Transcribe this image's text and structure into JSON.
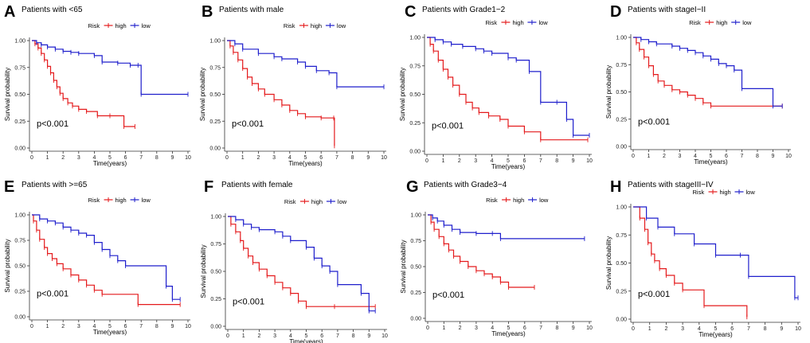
{
  "figure": {
    "common": {
      "legend_title": "Risk",
      "legend_high": "high",
      "legend_low": "low",
      "xlabel": "Time(years)",
      "ylabel": "Survival probability",
      "y_ticks": [
        "0.00",
        "0.25",
        "0.50",
        "0.75",
        "1.00"
      ],
      "colors": {
        "high": "#e41a1c",
        "low": "#1f1fcc"
      }
    }
  },
  "chart_data": [
    {
      "type": "line",
      "panel": "A",
      "title": "Patients with <65",
      "pvalue": "p<0.001",
      "xlim": [
        0,
        10
      ],
      "ylim": [
        0,
        1
      ],
      "x_ticks": [
        0,
        1,
        2,
        3,
        4,
        5,
        6,
        7,
        8,
        9,
        10
      ],
      "series": [
        {
          "name": "high",
          "x": [
            0,
            0.2,
            0.4,
            0.6,
            0.8,
            1.0,
            1.2,
            1.4,
            1.6,
            1.8,
            2.0,
            2.3,
            2.6,
            3.0,
            3.5,
            4.2,
            5.0,
            5.9,
            6.6
          ],
          "y": [
            1.0,
            0.97,
            0.93,
            0.88,
            0.82,
            0.76,
            0.7,
            0.63,
            0.57,
            0.51,
            0.46,
            0.42,
            0.39,
            0.36,
            0.34,
            0.3,
            0.3,
            0.2,
            0.2
          ]
        },
        {
          "name": "low",
          "x": [
            0,
            0.3,
            0.6,
            1.0,
            1.5,
            2.0,
            2.5,
            3.0,
            4.0,
            4.5,
            5.5,
            6.3,
            6.8,
            7.0,
            10.0
          ],
          "y": [
            1.0,
            0.98,
            0.96,
            0.94,
            0.92,
            0.9,
            0.89,
            0.88,
            0.86,
            0.8,
            0.79,
            0.77,
            0.77,
            0.5,
            0.5
          ]
        }
      ]
    },
    {
      "type": "line",
      "panel": "B",
      "title": "Patients with male",
      "pvalue": "p<0.001",
      "xlim": [
        0,
        10
      ],
      "ylim": [
        0,
        1
      ],
      "x_ticks": [
        0,
        1,
        2,
        3,
        4,
        5,
        6,
        7,
        8,
        9,
        10
      ],
      "series": [
        {
          "name": "high",
          "x": [
            0,
            0.2,
            0.4,
            0.7,
            1.0,
            1.3,
            1.6,
            2.0,
            2.4,
            3.0,
            3.5,
            4.0,
            4.5,
            5.0,
            6.0,
            6.8,
            6.85
          ],
          "y": [
            1.0,
            0.95,
            0.89,
            0.82,
            0.74,
            0.66,
            0.6,
            0.55,
            0.5,
            0.45,
            0.4,
            0.35,
            0.32,
            0.29,
            0.28,
            0.28,
            0.02
          ]
        },
        {
          "name": "low",
          "x": [
            0,
            0.5,
            1.0,
            2.0,
            3.0,
            3.5,
            4.5,
            5.0,
            5.7,
            6.5,
            7.0,
            10.0
          ],
          "y": [
            1.0,
            0.97,
            0.92,
            0.88,
            0.85,
            0.83,
            0.8,
            0.76,
            0.72,
            0.7,
            0.57,
            0.57
          ]
        }
      ]
    },
    {
      "type": "line",
      "panel": "C",
      "title": "Patients with Grade1−2",
      "pvalue": "p<0.001",
      "xlim": [
        0,
        10
      ],
      "ylim": [
        0,
        1
      ],
      "x_ticks": [
        0,
        1,
        2,
        3,
        4,
        5,
        6,
        7,
        8,
        9,
        10
      ],
      "series": [
        {
          "name": "high",
          "x": [
            0,
            0.2,
            0.4,
            0.7,
            1.0,
            1.3,
            1.6,
            2.0,
            2.4,
            2.8,
            3.2,
            3.8,
            4.5,
            5.0,
            6.0,
            7.0,
            9.9
          ],
          "y": [
            1.0,
            0.94,
            0.88,
            0.8,
            0.72,
            0.65,
            0.58,
            0.5,
            0.43,
            0.38,
            0.34,
            0.31,
            0.28,
            0.22,
            0.17,
            0.1,
            0.1
          ]
        },
        {
          "name": "low",
          "x": [
            0,
            0.5,
            1.0,
            1.5,
            2.2,
            3.0,
            3.5,
            4.0,
            5.0,
            5.5,
            6.3,
            7.0,
            8.0,
            8.6,
            9.0,
            10.0
          ],
          "y": [
            1.0,
            0.98,
            0.96,
            0.94,
            0.92,
            0.9,
            0.88,
            0.86,
            0.82,
            0.8,
            0.7,
            0.43,
            0.43,
            0.28,
            0.14,
            0.14
          ]
        }
      ]
    },
    {
      "type": "line",
      "panel": "D",
      "title": "Patients with stageI−II",
      "pvalue": "p<0.001",
      "xlim": [
        0,
        10
      ],
      "ylim": [
        0,
        1
      ],
      "x_ticks": [
        0,
        1,
        2,
        3,
        4,
        5,
        6,
        7,
        8,
        9,
        10
      ],
      "series": [
        {
          "name": "high",
          "x": [
            0,
            0.2,
            0.4,
            0.7,
            1.0,
            1.3,
            1.6,
            2.0,
            2.5,
            3.0,
            3.5,
            4.0,
            4.5,
            5.0,
            9.6
          ],
          "y": [
            1.0,
            0.95,
            0.89,
            0.82,
            0.74,
            0.66,
            0.6,
            0.56,
            0.52,
            0.5,
            0.47,
            0.44,
            0.4,
            0.37,
            0.37
          ]
        },
        {
          "name": "low",
          "x": [
            0,
            0.5,
            1.0,
            1.5,
            2.5,
            3.0,
            3.5,
            4.0,
            4.5,
            5.0,
            5.5,
            6.0,
            6.5,
            7.0,
            9.0,
            9.6
          ],
          "y": [
            1.0,
            0.98,
            0.96,
            0.94,
            0.92,
            0.9,
            0.88,
            0.86,
            0.83,
            0.8,
            0.76,
            0.74,
            0.7,
            0.53,
            0.37,
            0.37
          ]
        }
      ]
    },
    {
      "type": "line",
      "panel": "E",
      "title": "Patients with >=65",
      "pvalue": "p<0.001",
      "xlim": [
        0,
        10
      ],
      "ylim": [
        0,
        1
      ],
      "x_ticks": [
        0,
        1,
        2,
        3,
        4,
        5,
        6,
        7,
        8,
        9,
        10
      ],
      "series": [
        {
          "name": "high",
          "x": [
            0,
            0.1,
            0.3,
            0.5,
            0.8,
            1.0,
            1.3,
            1.6,
            2.0,
            2.5,
            3.0,
            3.5,
            4.0,
            4.5,
            6.8,
            9.5
          ],
          "y": [
            1.0,
            0.94,
            0.85,
            0.76,
            0.68,
            0.62,
            0.57,
            0.52,
            0.47,
            0.41,
            0.36,
            0.31,
            0.26,
            0.22,
            0.12,
            0.12
          ]
        },
        {
          "name": "low",
          "x": [
            0,
            0.5,
            1.0,
            1.5,
            2.0,
            2.5,
            3.0,
            3.5,
            4.0,
            4.5,
            5.0,
            5.5,
            6.0,
            8.6,
            9.0,
            9.5
          ],
          "y": [
            1.0,
            0.96,
            0.94,
            0.92,
            0.88,
            0.85,
            0.82,
            0.8,
            0.73,
            0.66,
            0.6,
            0.55,
            0.5,
            0.3,
            0.17,
            0.17
          ]
        }
      ]
    },
    {
      "type": "line",
      "panel": "F",
      "title": "Patients with female",
      "pvalue": "p<0.001",
      "xlim": [
        0,
        10
      ],
      "ylim": [
        0,
        1
      ],
      "x_ticks": [
        0,
        1,
        2,
        3,
        4,
        5,
        6,
        7,
        8,
        9,
        10
      ],
      "series": [
        {
          "name": "high",
          "x": [
            0,
            0.2,
            0.5,
            0.8,
            1.0,
            1.3,
            1.6,
            2.0,
            2.5,
            3.0,
            3.5,
            4.0,
            4.5,
            5.0,
            6.8,
            9.4
          ],
          "y": [
            1.0,
            0.93,
            0.86,
            0.78,
            0.71,
            0.64,
            0.58,
            0.52,
            0.46,
            0.4,
            0.35,
            0.3,
            0.23,
            0.18,
            0.18,
            0.18
          ]
        },
        {
          "name": "low",
          "x": [
            0,
            0.5,
            1.0,
            1.5,
            2.0,
            3.0,
            3.5,
            4.0,
            5.0,
            5.5,
            6.0,
            6.5,
            7.0,
            8.5,
            9.0,
            9.4
          ],
          "y": [
            1.0,
            0.97,
            0.93,
            0.9,
            0.88,
            0.86,
            0.82,
            0.78,
            0.72,
            0.62,
            0.55,
            0.5,
            0.38,
            0.3,
            0.14,
            0.14
          ]
        }
      ]
    },
    {
      "type": "line",
      "panel": "G",
      "title": "Patients with Grade3−4",
      "pvalue": "p<0.001",
      "xlim": [
        0,
        10
      ],
      "ylim": [
        0,
        1
      ],
      "x_ticks": [
        0,
        1,
        2,
        3,
        4,
        5,
        6,
        7,
        8,
        9,
        10
      ],
      "series": [
        {
          "name": "high",
          "x": [
            0,
            0.2,
            0.4,
            0.7,
            1.0,
            1.3,
            1.6,
            2.0,
            2.5,
            3.0,
            3.5,
            4.0,
            4.5,
            5.0,
            6.6
          ],
          "y": [
            1.0,
            0.93,
            0.86,
            0.79,
            0.72,
            0.66,
            0.6,
            0.55,
            0.5,
            0.46,
            0.43,
            0.4,
            0.35,
            0.3,
            0.3
          ]
        },
        {
          "name": "low",
          "x": [
            0,
            0.3,
            0.6,
            1.0,
            1.5,
            2.0,
            3.0,
            4.0,
            4.5,
            9.7
          ],
          "y": [
            1.0,
            0.97,
            0.94,
            0.9,
            0.86,
            0.83,
            0.82,
            0.82,
            0.77,
            0.77
          ]
        }
      ]
    },
    {
      "type": "line",
      "panel": "H",
      "title": "Patients with stageIII−IV",
      "pvalue": "p<0.001",
      "xlim": [
        0,
        10
      ],
      "ylim": [
        0,
        1
      ],
      "x_ticks": [
        0,
        1,
        2,
        3,
        4,
        5,
        6,
        7,
        8,
        9,
        10
      ],
      "series": [
        {
          "name": "high",
          "x": [
            0,
            0.4,
            0.7,
            0.9,
            1.1,
            1.3,
            1.6,
            2.0,
            2.5,
            3.0,
            4.3,
            6.9
          ],
          "y": [
            1.0,
            0.9,
            0.8,
            0.68,
            0.58,
            0.52,
            0.45,
            0.39,
            0.32,
            0.26,
            0.12,
            0.02
          ]
        },
        {
          "name": "low",
          "x": [
            0,
            0.8,
            1.5,
            2.5,
            3.7,
            5.0,
            6.5,
            7.0,
            9.8,
            10.0
          ],
          "y": [
            1.0,
            0.9,
            0.82,
            0.76,
            0.67,
            0.57,
            0.57,
            0.38,
            0.19,
            0.19
          ]
        }
      ]
    }
  ]
}
